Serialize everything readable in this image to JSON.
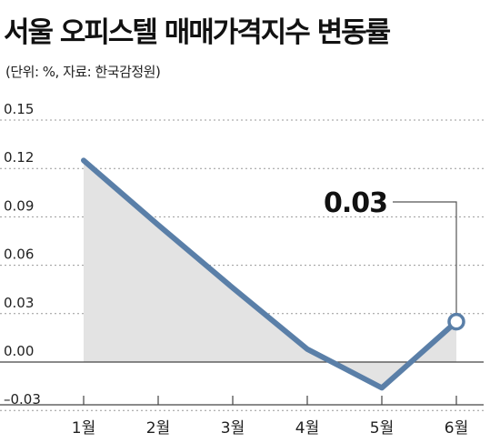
{
  "title": "서울 오피스텔 매매가격지수 변동률",
  "subtitle": "(단위: %, 자료: 한국감정원)",
  "chart_data": {
    "type": "line",
    "title": "서울 오피스텔 매매가격지수 변동률",
    "subtitle": "(단위: %, 자료: 한국감정원)",
    "categories": [
      "1월",
      "2월",
      "3월",
      "4월",
      "5월",
      "6월"
    ],
    "values": [
      0.125,
      0.085,
      0.046,
      0.008,
      -0.016,
      0.025
    ],
    "y_ticks": [
      "0.15",
      "0.12",
      "0.09",
      "0.06",
      "0.03",
      "0.00",
      "–0.03"
    ],
    "y_tick_values": [
      0.15,
      0.12,
      0.09,
      0.06,
      0.03,
      0.0,
      -0.03
    ],
    "ylim": [
      -0.035,
      0.15
    ],
    "grid": "horizontal dashed",
    "annotation": {
      "category": "6월",
      "text": "0.03"
    },
    "colors": {
      "line": "#5a7fa8",
      "area": "#e3e3e3",
      "grid": "#999999"
    }
  }
}
